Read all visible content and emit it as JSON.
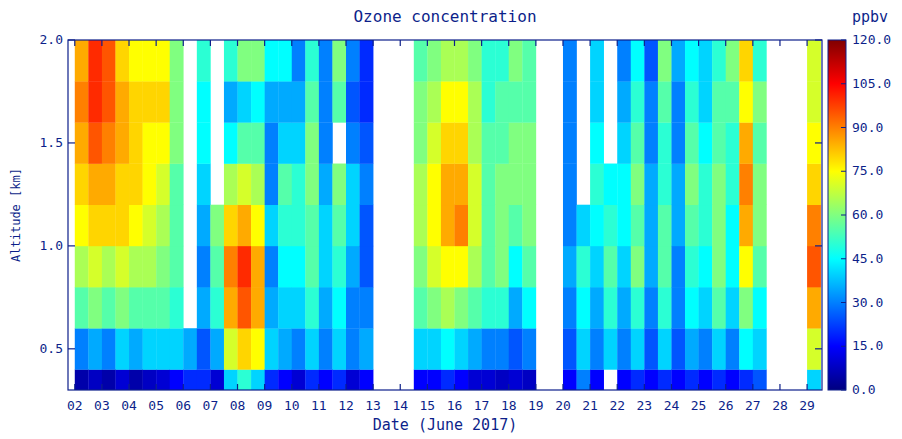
{
  "chart_data": {
    "type": "heatmap",
    "title": "Ozone concentration",
    "x_label": "Date (June 2017)",
    "y_label": "Altitude [km]",
    "xlim": [
      1.75,
      29.55
    ],
    "xticks": [
      {
        "value": 2,
        "label": "02"
      },
      {
        "value": 3,
        "label": "03"
      },
      {
        "value": 4,
        "label": "04"
      },
      {
        "value": 5,
        "label": "05"
      },
      {
        "value": 6,
        "label": "06"
      },
      {
        "value": 7,
        "label": "07"
      },
      {
        "value": 8,
        "label": "08"
      },
      {
        "value": 9,
        "label": "09"
      },
      {
        "value": 10,
        "label": "10"
      },
      {
        "value": 11,
        "label": "11"
      },
      {
        "value": 12,
        "label": "12"
      },
      {
        "value": 13,
        "label": "13"
      },
      {
        "value": 14,
        "label": "14"
      },
      {
        "value": 15,
        "label": "15"
      },
      {
        "value": 16,
        "label": "16"
      },
      {
        "value": 17,
        "label": "17"
      },
      {
        "value": 18,
        "label": "18"
      },
      {
        "value": 19,
        "label": "19"
      },
      {
        "value": 20,
        "label": "20"
      },
      {
        "value": 21,
        "label": "21"
      },
      {
        "value": 22,
        "label": "22"
      },
      {
        "value": 23,
        "label": "23"
      },
      {
        "value": 24,
        "label": "24"
      },
      {
        "value": 25,
        "label": "25"
      },
      {
        "value": 26,
        "label": "26"
      },
      {
        "value": 27,
        "label": "27"
      },
      {
        "value": 28,
        "label": "28"
      },
      {
        "value": 29,
        "label": "29"
      }
    ],
    "ylim": [
      0.3,
      2.0
    ],
    "yticks": [
      0.5,
      {
        "value": 1,
        "label": "1.0"
      },
      1.5,
      {
        "value": 2,
        "label": "2.0"
      }
    ],
    "x_edges": [
      2.0,
      2.5,
      3.0,
      3.5,
      4.0,
      4.5,
      5.0,
      5.5,
      6.0,
      6.5,
      7.0,
      7.5,
      8.0,
      8.5,
      9.0,
      9.5,
      10.0,
      10.5,
      11.0,
      11.5,
      12.0,
      12.5,
      13.0,
      13.5,
      14.0,
      14.5,
      15.0,
      15.5,
      16.0,
      16.5,
      17.0,
      17.5,
      18.0,
      18.5,
      19.0,
      19.5,
      20.0,
      20.5,
      21.0,
      21.5,
      22.0,
      22.5,
      23.0,
      23.5,
      24.0,
      24.5,
      25.0,
      25.5,
      26.0,
      26.5,
      27.0,
      27.5,
      28.0,
      28.5,
      29.0,
      29.5,
      30.0
    ],
    "y_edges": [
      0.3,
      0.4,
      0.6,
      0.8,
      1.0,
      1.2,
      1.4,
      1.6,
      1.8,
      2.0
    ],
    "values": [
      [
        5,
        30,
        55,
        65,
        75,
        80,
        85,
        90,
        85
      ],
      [
        8,
        35,
        60,
        70,
        80,
        85,
        95,
        100,
        100
      ],
      [
        5,
        30,
        55,
        65,
        80,
        85,
        90,
        95,
        95
      ],
      [
        10,
        40,
        60,
        70,
        80,
        80,
        85,
        85,
        80
      ],
      [
        5,
        35,
        55,
        65,
        75,
        80,
        80,
        80,
        75
      ],
      [
        8,
        40,
        55,
        65,
        70,
        75,
        75,
        80,
        75
      ],
      [
        10,
        40,
        55,
        60,
        65,
        70,
        75,
        80,
        75
      ],
      [
        15,
        40,
        50,
        55,
        55,
        55,
        60,
        60,
        60
      ],
      [
        20,
        35,
        null,
        null,
        null,
        null,
        null,
        null,
        null
      ],
      [
        20,
        25,
        35,
        30,
        35,
        40,
        45,
        45,
        50
      ],
      [
        10,
        35,
        50,
        55,
        60,
        null,
        null,
        null,
        null
      ],
      [
        40,
        70,
        85,
        90,
        80,
        65,
        45,
        35,
        50
      ],
      [
        50,
        80,
        95,
        100,
        85,
        70,
        55,
        40,
        60
      ],
      [
        40,
        75,
        85,
        85,
        75,
        65,
        55,
        45,
        60
      ],
      [
        20,
        40,
        35,
        30,
        40,
        30,
        30,
        35,
        45
      ],
      [
        15,
        35,
        40,
        45,
        50,
        55,
        40,
        35,
        45
      ],
      [
        10,
        30,
        40,
        45,
        50,
        50,
        40,
        35,
        30
      ],
      [
        20,
        40,
        50,
        55,
        55,
        60,
        60,
        55,
        50
      ],
      [
        15,
        30,
        35,
        40,
        40,
        35,
        30,
        30,
        30
      ],
      [
        20,
        40,
        45,
        50,
        55,
        60,
        null,
        55,
        60
      ],
      [
        10,
        30,
        30,
        35,
        40,
        40,
        30,
        25,
        30
      ],
      [
        15,
        35,
        30,
        25,
        25,
        30,
        25,
        20,
        20
      ],
      [
        null,
        null,
        null,
        null,
        null,
        null,
        null,
        null,
        null
      ],
      [
        null,
        null,
        null,
        null,
        null,
        null,
        null,
        null,
        null
      ],
      [
        null,
        null,
        null,
        null,
        null,
        null,
        null,
        null,
        null
      ],
      [
        15,
        40,
        55,
        60,
        65,
        65,
        60,
        60,
        55
      ],
      [
        15,
        40,
        60,
        70,
        75,
        75,
        70,
        65,
        60
      ],
      [
        20,
        45,
        65,
        75,
        85,
        85,
        80,
        75,
        65
      ],
      [
        15,
        40,
        60,
        75,
        90,
        85,
        80,
        75,
        65
      ],
      [
        10,
        35,
        55,
        65,
        70,
        70,
        65,
        65,
        60
      ],
      [
        10,
        30,
        50,
        55,
        55,
        55,
        55,
        50,
        50
      ],
      [
        8,
        30,
        50,
        60,
        60,
        60,
        55,
        55,
        50
      ],
      [
        10,
        25,
        35,
        45,
        55,
        60,
        60,
        55,
        60
      ],
      [
        8,
        30,
        45,
        55,
        60,
        60,
        60,
        55,
        55
      ],
      [
        null,
        null,
        null,
        null,
        null,
        null,
        null,
        null,
        null
      ],
      [
        null,
        null,
        null,
        null,
        null,
        null,
        null,
        null,
        null
      ],
      [
        15,
        25,
        30,
        35,
        30,
        30,
        30,
        30,
        30
      ],
      [
        30,
        40,
        45,
        50,
        40,
        null,
        null,
        null,
        null
      ],
      [
        15,
        30,
        35,
        40,
        45,
        50,
        45,
        40,
        40
      ],
      [
        null,
        40,
        50,
        55,
        50,
        45,
        null,
        null,
        null
      ],
      [
        15,
        30,
        35,
        40,
        45,
        45,
        40,
        35,
        30
      ],
      [
        20,
        40,
        50,
        60,
        55,
        60,
        55,
        50,
        45
      ],
      [
        15,
        25,
        30,
        35,
        35,
        35,
        30,
        30,
        25
      ],
      [
        20,
        40,
        50,
        55,
        55,
        50,
        50,
        55,
        60
      ],
      [
        15,
        25,
        30,
        30,
        35,
        35,
        30,
        30,
        35
      ],
      [
        20,
        35,
        45,
        50,
        55,
        60,
        55,
        50,
        45
      ],
      [
        15,
        30,
        40,
        45,
        50,
        50,
        45,
        40,
        40
      ],
      [
        20,
        40,
        55,
        60,
        60,
        60,
        55,
        55,
        50
      ],
      [
        15,
        30,
        40,
        45,
        45,
        50,
        50,
        55,
        60
      ],
      [
        20,
        45,
        60,
        75,
        85,
        90,
        85,
        75,
        80
      ],
      [
        25,
        40,
        45,
        55,
        60,
        60,
        55,
        60,
        50
      ],
      [
        null,
        null,
        null,
        null,
        null,
        null,
        null,
        null,
        null
      ],
      [
        null,
        null,
        null,
        null,
        null,
        null,
        null,
        null,
        null
      ],
      [
        null,
        null,
        null,
        null,
        null,
        null,
        null,
        null,
        null
      ],
      [
        40,
        70,
        85,
        95,
        90,
        80,
        75,
        70,
        70
      ],
      [
        null,
        null,
        null,
        null,
        null,
        null,
        null,
        null,
        null
      ]
    ],
    "colorbar": {
      "label": "ppbv",
      "range": [
        0,
        120
      ],
      "ticks": [
        {
          "value": 0,
          "label": "0.0"
        },
        {
          "value": 15,
          "label": "15.0"
        },
        {
          "value": 30,
          "label": "30.0"
        },
        {
          "value": 45,
          "label": "45.0"
        },
        {
          "value": 60,
          "label": "60.0"
        },
        {
          "value": 75,
          "label": "75.0"
        },
        {
          "value": 90,
          "label": "90.0"
        },
        {
          "value": 105,
          "label": "105.0"
        },
        {
          "value": 120,
          "label": "120.0"
        }
      ]
    }
  }
}
